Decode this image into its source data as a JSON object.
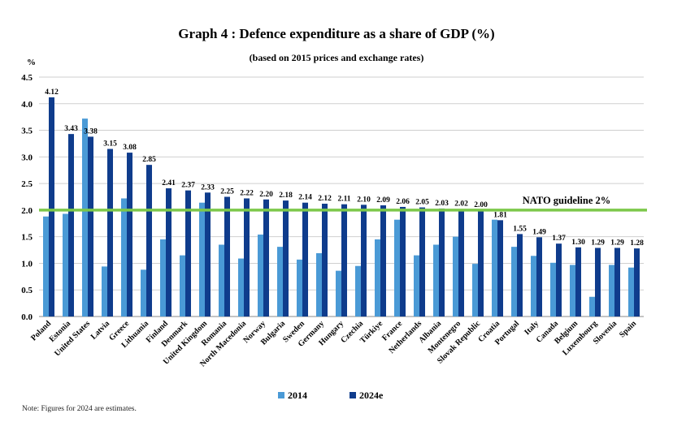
{
  "chart_data": {
    "type": "bar",
    "title": "Graph 4 : Defence expenditure as a share of GDP (%)",
    "subtitle": "(based on 2015 prices and exchange rates)",
    "ylabel": "%",
    "ylim": [
      0,
      4.5
    ],
    "yticks": [
      "0.0",
      "0.5",
      "1.0",
      "1.5",
      "2.0",
      "2.5",
      "3.0",
      "3.5",
      "4.0",
      "4.5"
    ],
    "grid": true,
    "legend_position": "bottom",
    "categories": [
      "Poland",
      "Estonia",
      "United States",
      "Latvia",
      "Greece",
      "Lithuania",
      "Finland",
      "Denmark",
      "United Kingdom",
      "Romania",
      "North Macedonia",
      "Norway",
      "Bulgaria",
      "Sweden",
      "Germany",
      "Hungary",
      "Czechia",
      "Türkiye",
      "France",
      "Netherlands",
      "Albania",
      "Montenegro",
      "Slovak Republic",
      "Croatia",
      "Portugal",
      "Italy",
      "Canada",
      "Belgium",
      "Luxembourg",
      "Slovenia",
      "Spain"
    ],
    "series": [
      {
        "name": "2014",
        "color": "#4a9ad6",
        "values": [
          1.88,
          1.93,
          3.72,
          0.94,
          2.22,
          0.88,
          1.45,
          1.15,
          2.14,
          1.35,
          1.09,
          1.54,
          1.31,
          1.07,
          1.19,
          0.86,
          0.95,
          1.45,
          1.82,
          1.15,
          1.35,
          1.5,
          0.99,
          1.82,
          1.31,
          1.14,
          1.01,
          0.97,
          0.37,
          0.97,
          0.92
        ],
        "labels": []
      },
      {
        "name": "2024e",
        "color": "#0f3c8c",
        "values": [
          4.12,
          3.43,
          3.38,
          3.15,
          3.08,
          2.85,
          2.41,
          2.37,
          2.33,
          2.25,
          2.22,
          2.2,
          2.18,
          2.14,
          2.12,
          2.11,
          2.1,
          2.09,
          2.06,
          2.05,
          2.03,
          2.02,
          2.0,
          1.81,
          1.55,
          1.49,
          1.37,
          1.3,
          1.29,
          1.29,
          1.28
        ],
        "labels": [
          "4.12",
          "3.43",
          "3.38",
          "3.15",
          "3.08",
          "2.85",
          "2.41",
          "2.37",
          "2.33",
          "2.25",
          "2.22",
          "2.20",
          "2.18",
          "2.14",
          "2.12",
          "2.11",
          "2.10",
          "2.09",
          "2.06",
          "2.05",
          "2.03",
          "2.02",
          "2.00",
          "1.81",
          "1.55",
          "1.49",
          "1.37",
          "1.30",
          "1.29",
          "1.29",
          "1.28"
        ]
      }
    ],
    "reference_line": {
      "label": "NATO guideline 2%",
      "value": 2.0,
      "color": "#7cc84a"
    }
  },
  "note": "Note: Figures for 2024 are estimates."
}
